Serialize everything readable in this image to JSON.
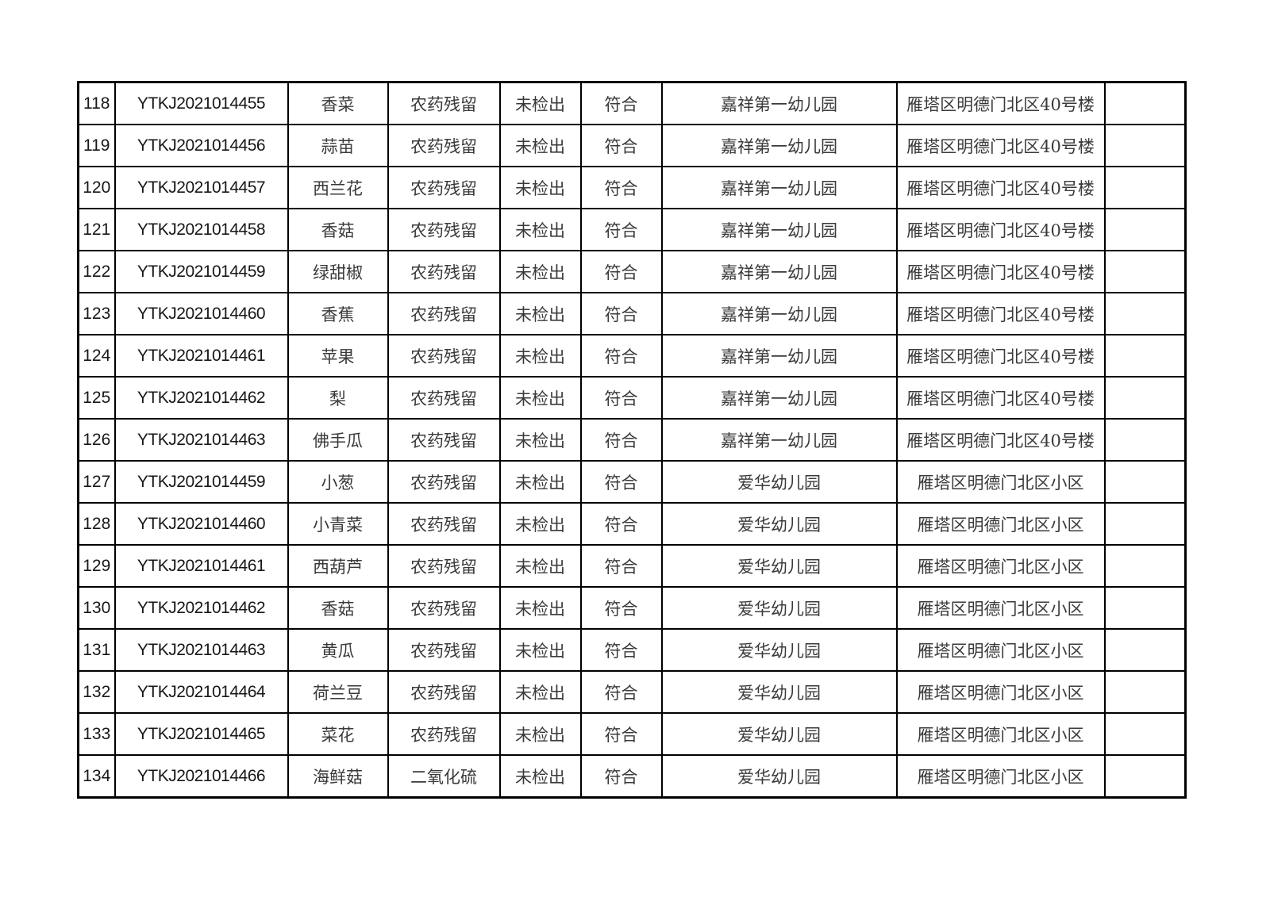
{
  "page": {
    "background_color": "#ffffff",
    "border_color": "#000000",
    "description": "Food safety sampling inspection result table page, rows 118-134"
  },
  "table": {
    "column_keys": [
      "no",
      "sample_id",
      "sample_name",
      "test_item",
      "result",
      "conclusion",
      "site",
      "address",
      "remark"
    ],
    "column_names": [
      "row-number-cell",
      "sample-id-cell",
      "sample-name-cell",
      "test-item-cell",
      "test-result-cell",
      "conclusion-cell",
      "sampled-unit-cell",
      "address-cell",
      "remark-cell"
    ],
    "rows": [
      {
        "no": "118",
        "sample_id": "YTKJ2021014455",
        "sample_name": "香菜",
        "test_item": "农药残留",
        "result": "未检出",
        "conclusion": "符合",
        "site": "嘉祥第一幼儿园",
        "address": "雁塔区明德门北区40号楼",
        "remark": ""
      },
      {
        "no": "119",
        "sample_id": "YTKJ2021014456",
        "sample_name": "蒜苗",
        "test_item": "农药残留",
        "result": "未检出",
        "conclusion": "符合",
        "site": "嘉祥第一幼儿园",
        "address": "雁塔区明德门北区40号楼",
        "remark": ""
      },
      {
        "no": "120",
        "sample_id": "YTKJ2021014457",
        "sample_name": "西兰花",
        "test_item": "农药残留",
        "result": "未检出",
        "conclusion": "符合",
        "site": "嘉祥第一幼儿园",
        "address": "雁塔区明德门北区40号楼",
        "remark": ""
      },
      {
        "no": "121",
        "sample_id": "YTKJ2021014458",
        "sample_name": "香菇",
        "test_item": "农药残留",
        "result": "未检出",
        "conclusion": "符合",
        "site": "嘉祥第一幼儿园",
        "address": "雁塔区明德门北区40号楼",
        "remark": ""
      },
      {
        "no": "122",
        "sample_id": "YTKJ2021014459",
        "sample_name": "绿甜椒",
        "test_item": "农药残留",
        "result": "未检出",
        "conclusion": "符合",
        "site": "嘉祥第一幼儿园",
        "address": "雁塔区明德门北区40号楼",
        "remark": ""
      },
      {
        "no": "123",
        "sample_id": "YTKJ2021014460",
        "sample_name": "香蕉",
        "test_item": "农药残留",
        "result": "未检出",
        "conclusion": "符合",
        "site": "嘉祥第一幼儿园",
        "address": "雁塔区明德门北区40号楼",
        "remark": ""
      },
      {
        "no": "124",
        "sample_id": "YTKJ2021014461",
        "sample_name": "苹果",
        "test_item": "农药残留",
        "result": "未检出",
        "conclusion": "符合",
        "site": "嘉祥第一幼儿园",
        "address": "雁塔区明德门北区40号楼",
        "remark": ""
      },
      {
        "no": "125",
        "sample_id": "YTKJ2021014462",
        "sample_name": "梨",
        "test_item": "农药残留",
        "result": "未检出",
        "conclusion": "符合",
        "site": "嘉祥第一幼儿园",
        "address": "雁塔区明德门北区40号楼",
        "remark": ""
      },
      {
        "no": "126",
        "sample_id": "YTKJ2021014463",
        "sample_name": "佛手瓜",
        "test_item": "农药残留",
        "result": "未检出",
        "conclusion": "符合",
        "site": "嘉祥第一幼儿园",
        "address": "雁塔区明德门北区40号楼",
        "remark": ""
      },
      {
        "no": "127",
        "sample_id": "YTKJ2021014459",
        "sample_name": "小葱",
        "test_item": "农药残留",
        "result": "未检出",
        "conclusion": "符合",
        "site": "爱华幼儿园",
        "address": "雁塔区明德门北区小区",
        "remark": ""
      },
      {
        "no": "128",
        "sample_id": "YTKJ2021014460",
        "sample_name": "小青菜",
        "test_item": "农药残留",
        "result": "未检出",
        "conclusion": "符合",
        "site": "爱华幼儿园",
        "address": "雁塔区明德门北区小区",
        "remark": ""
      },
      {
        "no": "129",
        "sample_id": "YTKJ2021014461",
        "sample_name": "西葫芦",
        "test_item": "农药残留",
        "result": "未检出",
        "conclusion": "符合",
        "site": "爱华幼儿园",
        "address": "雁塔区明德门北区小区",
        "remark": ""
      },
      {
        "no": "130",
        "sample_id": "YTKJ2021014462",
        "sample_name": "香菇",
        "test_item": "农药残留",
        "result": "未检出",
        "conclusion": "符合",
        "site": "爱华幼儿园",
        "address": "雁塔区明德门北区小区",
        "remark": ""
      },
      {
        "no": "131",
        "sample_id": "YTKJ2021014463",
        "sample_name": "黄瓜",
        "test_item": "农药残留",
        "result": "未检出",
        "conclusion": "符合",
        "site": "爱华幼儿园",
        "address": "雁塔区明德门北区小区",
        "remark": ""
      },
      {
        "no": "132",
        "sample_id": "YTKJ2021014464",
        "sample_name": "荷兰豆",
        "test_item": "农药残留",
        "result": "未检出",
        "conclusion": "符合",
        "site": "爱华幼儿园",
        "address": "雁塔区明德门北区小区",
        "remark": ""
      },
      {
        "no": "133",
        "sample_id": "YTKJ2021014465",
        "sample_name": "菜花",
        "test_item": "农药残留",
        "result": "未检出",
        "conclusion": "符合",
        "site": "爱华幼儿园",
        "address": "雁塔区明德门北区小区",
        "remark": ""
      },
      {
        "no": "134",
        "sample_id": "YTKJ2021014466",
        "sample_name": "海鲜菇",
        "test_item": "二氧化硫",
        "result": "未检出",
        "conclusion": "符合",
        "site": "爱华幼儿园",
        "address": "雁塔区明德门北区小区",
        "remark": ""
      }
    ]
  }
}
